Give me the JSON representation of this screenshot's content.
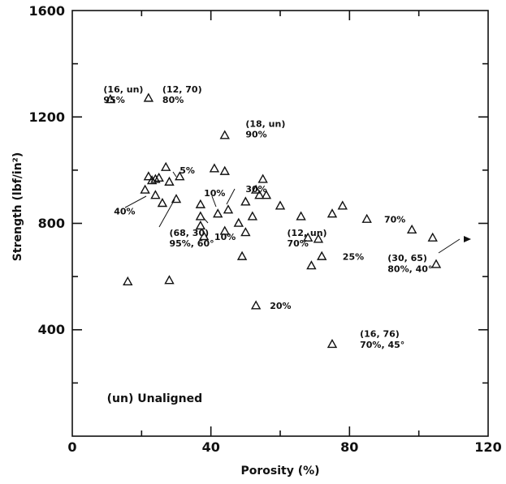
{
  "chart_data": {
    "type": "scatter",
    "xlabel": "Porosity (%)",
    "ylabel": "Strength (lbf/in²)",
    "xlim": [
      0,
      120
    ],
    "ylim": [
      0,
      1600
    ],
    "x_ticks": [
      "0",
      "40",
      "80",
      "120"
    ],
    "y_ticks": [
      "400",
      "800",
      "1200",
      "1600"
    ],
    "marker": "triangle",
    "grid": false,
    "series": [
      {
        "points": [
          [
            11,
            1265
          ],
          [
            22,
            1270
          ],
          [
            44,
            1130
          ],
          [
            16,
            580
          ],
          [
            21,
            925
          ],
          [
            22,
            975
          ],
          [
            23,
            960
          ],
          [
            24,
            965
          ],
          [
            24,
            905
          ],
          [
            25,
            970
          ],
          [
            26,
            875
          ],
          [
            27,
            1010
          ],
          [
            28,
            585
          ],
          [
            28,
            955
          ],
          [
            30,
            890
          ],
          [
            31,
            975
          ],
          [
            37,
            870
          ],
          [
            37,
            825
          ],
          [
            37,
            790
          ],
          [
            38,
            750
          ],
          [
            41,
            1005
          ],
          [
            42,
            835
          ],
          [
            44,
            770
          ],
          [
            44,
            995
          ],
          [
            45,
            850
          ],
          [
            48,
            800
          ],
          [
            49,
            675
          ],
          [
            50,
            765
          ],
          [
            50,
            880
          ],
          [
            52,
            825
          ],
          [
            53,
            490
          ],
          [
            53,
            925
          ],
          [
            54,
            905
          ],
          [
            55,
            965
          ],
          [
            56,
            905
          ],
          [
            60,
            865
          ],
          [
            66,
            825
          ],
          [
            68,
            745
          ],
          [
            69,
            640
          ],
          [
            71,
            740
          ],
          [
            72,
            675
          ],
          [
            75,
            835
          ],
          [
            75,
            345
          ],
          [
            78,
            865
          ],
          [
            85,
            815
          ],
          [
            98,
            775
          ],
          [
            104,
            745
          ],
          [
            105,
            645
          ]
        ]
      }
    ],
    "annotations": [
      {
        "text": "(16, un)",
        "x": 9,
        "y": 1305
      },
      {
        "text": "95%",
        "x": 9,
        "y": 1265
      },
      {
        "text": "(12, 70)",
        "x": 26,
        "y": 1305
      },
      {
        "text": "80%",
        "x": 26,
        "y": 1265
      },
      {
        "text": "(18, un)",
        "x": 50,
        "y": 1175
      },
      {
        "text": "90%",
        "x": 50,
        "y": 1135
      },
      {
        "text": "5%",
        "x": 31,
        "y": 1000
      },
      {
        "text": "40%",
        "x": 12,
        "y": 845
      },
      {
        "text": "10%",
        "x": 38,
        "y": 915
      },
      {
        "text": "30%",
        "x": 50,
        "y": 930
      },
      {
        "text": "10%",
        "x": 41,
        "y": 750
      },
      {
        "text": "(68, 30)",
        "x": 28,
        "y": 765
      },
      {
        "text": "95%, 60°",
        "x": 28,
        "y": 725
      },
      {
        "text": "(12, un)",
        "x": 62,
        "y": 765
      },
      {
        "text": "70%",
        "x": 62,
        "y": 725
      },
      {
        "text": "25%",
        "x": 78,
        "y": 675
      },
      {
        "text": "70%",
        "x": 90,
        "y": 815
      },
      {
        "text": "(30, 65)",
        "x": 91,
        "y": 670
      },
      {
        "text": "80%, 40°",
        "x": 91,
        "y": 630
      },
      {
        "text": "20%",
        "x": 57,
        "y": 490
      },
      {
        "text": "(16, 76)",
        "x": 83,
        "y": 385
      },
      {
        "text": "70%, 45°",
        "x": 83,
        "y": 345
      },
      {
        "text": "(un) Unaligned",
        "x": 10,
        "y": 140
      }
    ]
  }
}
